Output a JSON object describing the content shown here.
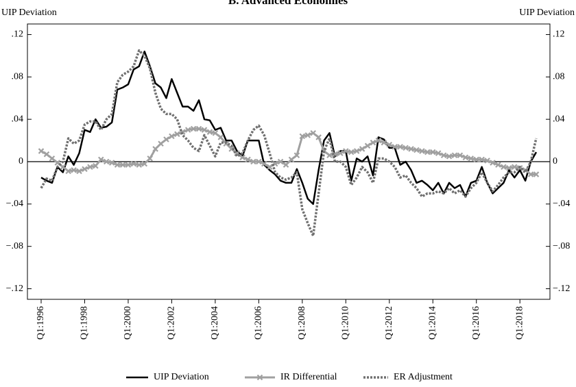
{
  "chart_data": {
    "type": "line",
    "title": "B. Advanced Economies",
    "ylabel": "UIP Deviation",
    "y2label": "UIP Deviation",
    "categories": [
      "Q1:1996",
      null,
      null,
      null,
      null,
      null,
      null,
      null,
      "Q1:1998",
      null,
      null,
      null,
      null,
      null,
      null,
      null,
      "Q1:2000",
      null,
      null,
      null,
      null,
      null,
      null,
      null,
      "Q1:2002",
      null,
      null,
      null,
      null,
      null,
      null,
      null,
      "Q1:2004",
      null,
      null,
      null,
      null,
      null,
      null,
      null,
      "Q1:2006",
      null,
      null,
      null,
      null,
      null,
      null,
      null,
      "Q1:2008",
      null,
      null,
      null,
      null,
      null,
      null,
      null,
      "Q1:2010",
      null,
      null,
      null,
      null,
      null,
      null,
      null,
      "Q1:2012",
      null,
      null,
      null,
      null,
      null,
      null,
      null,
      "Q1:2014",
      null,
      null,
      null,
      null,
      null,
      null,
      null,
      "Q1:2016",
      null,
      null,
      null,
      null,
      null,
      null,
      null,
      "Q1:2018",
      null,
      null,
      null
    ],
    "ylim": [
      -0.13,
      0.13
    ],
    "yticks": [
      {
        "value": 0.12,
        "label": ".12"
      },
      {
        "value": 0.08,
        "label": ".08"
      },
      {
        "value": 0.04,
        "label": ".04"
      },
      0,
      {
        "value": -0.04,
        "label": "−.04"
      },
      {
        "value": -0.08,
        "label": "−.08"
      },
      {
        "value": -0.12,
        "label": "−.12"
      }
    ],
    "y2lim": [
      -0.13,
      0.13
    ],
    "y2ticks": [
      {
        "value": 0.12,
        "label": ".12"
      },
      {
        "value": 0.08,
        "label": ".08"
      },
      {
        "value": 0.04,
        "label": ".04"
      },
      0,
      {
        "value": -0.04,
        "label": "−.04"
      },
      {
        "value": -0.08,
        "label": "−.08"
      },
      {
        "value": -0.12,
        "label": "−.12"
      }
    ],
    "legend": "bottom",
    "series": [
      {
        "name": "UIP Deviation",
        "color": "#000000",
        "style": "solid",
        "values": [
          -0.015,
          -0.018,
          -0.02,
          -0.005,
          -0.01,
          0.005,
          -0.003,
          0.008,
          0.03,
          0.028,
          0.04,
          0.032,
          0.033,
          0.037,
          0.068,
          0.07,
          0.073,
          0.087,
          0.09,
          0.104,
          0.09,
          0.074,
          0.07,
          0.06,
          0.078,
          0.065,
          0.052,
          0.052,
          0.048,
          0.058,
          0.04,
          0.039,
          0.03,
          0.032,
          0.02,
          0.02,
          0.01,
          0.005,
          0.02,
          0.02,
          0.02,
          -0.003,
          -0.008,
          -0.012,
          -0.018,
          -0.02,
          -0.02,
          -0.007,
          -0.02,
          -0.035,
          -0.04,
          -0.008,
          0.02,
          0.027,
          0.005,
          0.01,
          0.01,
          -0.018,
          0.003,
          0.0,
          0.005,
          -0.013,
          0.023,
          0.021,
          0.013,
          0.013,
          -0.003,
          0.0,
          -0.008,
          -0.02,
          -0.018,
          -0.022,
          -0.027,
          -0.02,
          -0.03,
          -0.02,
          -0.025,
          -0.022,
          -0.033,
          -0.02,
          -0.018,
          -0.005,
          -0.02,
          -0.03,
          -0.025,
          -0.02,
          -0.008,
          -0.015,
          -0.008,
          -0.018,
          0.0,
          0.009
        ]
      },
      {
        "name": "IR Differential",
        "color": "#a0a0a0",
        "style": "marker-x",
        "values": [
          0.01,
          0.007,
          0.003,
          -0.001,
          -0.005,
          -0.009,
          -0.008,
          -0.009,
          -0.007,
          -0.005,
          -0.004,
          0.002,
          0.0,
          -0.001,
          -0.003,
          -0.003,
          -0.003,
          -0.002,
          -0.003,
          -0.002,
          0.003,
          0.012,
          0.017,
          0.021,
          0.024,
          0.026,
          0.028,
          0.03,
          0.031,
          0.031,
          0.03,
          0.028,
          0.027,
          0.023,
          0.017,
          0.012,
          0.008,
          0.004,
          0.002,
          0.0,
          0.0,
          -0.002,
          -0.005,
          -0.002,
          0.0,
          -0.003,
          0.002,
          0.006,
          0.024,
          0.025,
          0.027,
          0.023,
          0.01,
          0.006,
          0.007,
          0.008,
          0.01,
          0.009,
          0.01,
          0.012,
          0.015,
          0.018,
          0.02,
          0.018,
          0.016,
          0.014,
          0.014,
          0.013,
          0.012,
          0.011,
          0.01,
          0.009,
          0.009,
          0.008,
          0.006,
          0.005,
          0.006,
          0.006,
          0.004,
          0.003,
          0.002,
          0.002,
          0.001,
          -0.001,
          -0.003,
          -0.005,
          -0.006,
          -0.005,
          -0.006,
          -0.008,
          -0.012,
          -0.012
        ]
      },
      {
        "name": "ER Adjustment",
        "color": "#707070",
        "style": "dotted",
        "values": [
          -0.025,
          -0.016,
          -0.018,
          -0.005,
          0.0,
          0.022,
          0.017,
          0.02,
          0.035,
          0.038,
          0.038,
          0.03,
          0.04,
          0.045,
          0.075,
          0.082,
          0.085,
          0.09,
          0.105,
          0.1,
          0.088,
          0.065,
          0.05,
          0.045,
          0.045,
          0.04,
          0.025,
          0.02,
          0.013,
          0.01,
          0.025,
          0.015,
          0.005,
          0.018,
          0.018,
          0.015,
          0.005,
          0.008,
          0.02,
          0.03,
          0.034,
          0.025,
          0.008,
          -0.01,
          -0.015,
          -0.017,
          -0.015,
          -0.01,
          -0.045,
          -0.058,
          -0.07,
          -0.03,
          0.01,
          0.022,
          0.0,
          0.0,
          -0.005,
          -0.022,
          -0.015,
          -0.005,
          -0.01,
          -0.02,
          0.003,
          0.003,
          0.0,
          -0.005,
          -0.015,
          -0.013,
          -0.02,
          -0.025,
          -0.033,
          -0.03,
          -0.03,
          -0.028,
          -0.03,
          -0.025,
          -0.03,
          -0.027,
          -0.033,
          -0.025,
          -0.02,
          -0.01,
          -0.02,
          -0.028,
          -0.022,
          -0.015,
          -0.01,
          -0.01,
          -0.005,
          -0.01,
          0.0,
          0.022
        ]
      }
    ]
  }
}
